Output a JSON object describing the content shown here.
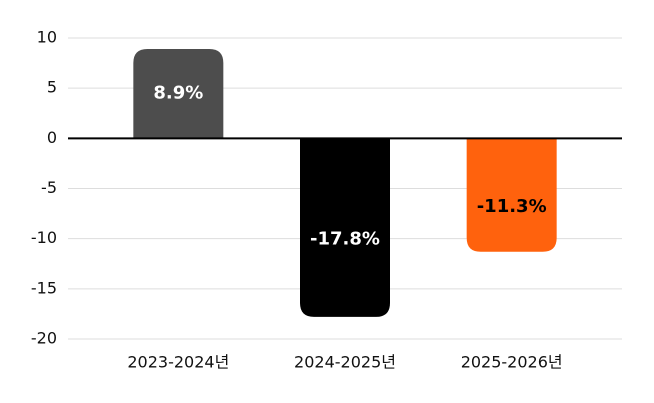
{
  "chart_data": {
    "type": "bar",
    "categories": [
      "2023-2024년",
      "2024-2025년",
      "2025-2026년"
    ],
    "values": [
      8.9,
      -17.8,
      -11.3
    ],
    "value_labels": [
      "8.9%",
      "-17.8%",
      "-11.3%"
    ],
    "colors": [
      "#4d4d4d",
      "#000000",
      "#ff620d"
    ],
    "label_colors": [
      "#ffffff",
      "#ffffff",
      "#000000"
    ],
    "ylim": [
      -20,
      10
    ],
    "yticks": [
      -20,
      -15,
      -10,
      -5,
      0,
      5,
      10
    ],
    "grid": true
  }
}
